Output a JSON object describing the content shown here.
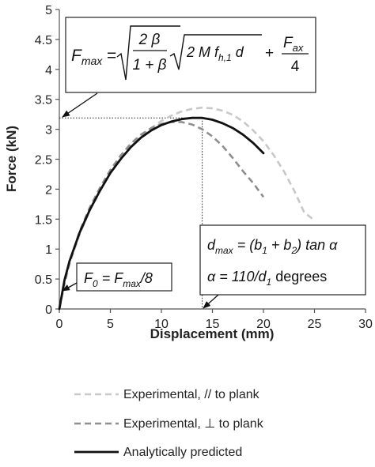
{
  "chart_data": {
    "type": "line",
    "xlabel": "Displacement (mm)",
    "ylabel": "Force (kN)",
    "xlim": [
      0,
      30
    ],
    "ylim": [
      0,
      5
    ],
    "x_ticks": [
      "0",
      "5",
      "10",
      "15",
      "20",
      "25",
      "30"
    ],
    "y_ticks": [
      "0",
      "0.5",
      "1",
      "1.5",
      "2",
      "2.5",
      "3",
      "3.5",
      "4",
      "4.5",
      "5"
    ],
    "grid": false,
    "legend_position": "bottom",
    "series": [
      {
        "name": "Experimental, // to plank",
        "style": "dashed",
        "color": "#c8c8c8",
        "points": [
          [
            0,
            0
          ],
          [
            0.5,
            0.4
          ],
          [
            1,
            0.75
          ],
          [
            2,
            1.25
          ],
          [
            3,
            1.65
          ],
          [
            4,
            1.98
          ],
          [
            5,
            2.27
          ],
          [
            6,
            2.52
          ],
          [
            7,
            2.72
          ],
          [
            8,
            2.88
          ],
          [
            9,
            3.02
          ],
          [
            10,
            3.14
          ],
          [
            11,
            3.23
          ],
          [
            12,
            3.3
          ],
          [
            13,
            3.34
          ],
          [
            14,
            3.36
          ],
          [
            15,
            3.35
          ],
          [
            16,
            3.31
          ],
          [
            17,
            3.24
          ],
          [
            18,
            3.13
          ],
          [
            19,
            2.98
          ],
          [
            20,
            2.8
          ],
          [
            21,
            2.57
          ],
          [
            22,
            2.3
          ],
          [
            23,
            1.98
          ],
          [
            24,
            1.61
          ],
          [
            25,
            1.48
          ]
        ]
      },
      {
        "name": "Experimental, ⊥ to plank",
        "style": "dashed",
        "color": "#8e8e8e",
        "points": [
          [
            0,
            0
          ],
          [
            0.5,
            0.45
          ],
          [
            1,
            0.78
          ],
          [
            2,
            1.3
          ],
          [
            3,
            1.7
          ],
          [
            4,
            2.03
          ],
          [
            5,
            2.32
          ],
          [
            6,
            2.56
          ],
          [
            7,
            2.76
          ],
          [
            8,
            2.91
          ],
          [
            9,
            3.02
          ],
          [
            10,
            3.09
          ],
          [
            11,
            3.12
          ],
          [
            12,
            3.12
          ],
          [
            13,
            3.08
          ],
          [
            14,
            3.0
          ],
          [
            15,
            2.88
          ],
          [
            16,
            2.72
          ],
          [
            17,
            2.52
          ],
          [
            18,
            2.3
          ],
          [
            19,
            2.1
          ],
          [
            20,
            1.87
          ]
        ]
      },
      {
        "name": "Analytically predicted",
        "style": "solid",
        "color": "#111111",
        "points": [
          [
            0,
            0
          ],
          [
            0.5,
            0.48
          ],
          [
            1,
            0.8
          ],
          [
            2,
            1.28
          ],
          [
            3,
            1.66
          ],
          [
            4,
            1.98
          ],
          [
            5,
            2.27
          ],
          [
            6,
            2.5
          ],
          [
            7,
            2.7
          ],
          [
            8,
            2.86
          ],
          [
            9,
            2.98
          ],
          [
            10,
            3.07
          ],
          [
            11,
            3.13
          ],
          [
            12,
            3.17
          ],
          [
            13,
            3.19
          ],
          [
            14,
            3.19
          ],
          [
            15,
            3.16
          ],
          [
            16,
            3.1
          ],
          [
            17,
            3.02
          ],
          [
            18,
            2.91
          ],
          [
            19,
            2.77
          ],
          [
            20,
            2.6
          ]
        ]
      }
    ],
    "reference_lines": {
      "f_max": 3.19,
      "d_max": 14
    },
    "annotations": {
      "fmax_formula": {
        "lhs": "max",
        "frac1_num": "2 β",
        "frac1_den": "1 + β",
        "sqrt2_prefix": "2 M f",
        "sqrt2_sub": "h,1",
        "sqrt2_suffix": " d",
        "plus": "+",
        "frac2_num_sub": "ax",
        "frac2_den": "4"
      },
      "f0_formula": {
        "sub0": "0",
        "eq": " = F",
        "submax": "max",
        "tail": "/8"
      },
      "dmax_formula": {
        "submax": "max",
        "mid": " = (b",
        "sub1": "1",
        "plus": " + b",
        "sub2": "2",
        "tail": ") tan α"
      },
      "alpha_formula": {
        "head": "α = 110/d",
        "sub1": "1",
        "tail": " degrees"
      }
    }
  }
}
